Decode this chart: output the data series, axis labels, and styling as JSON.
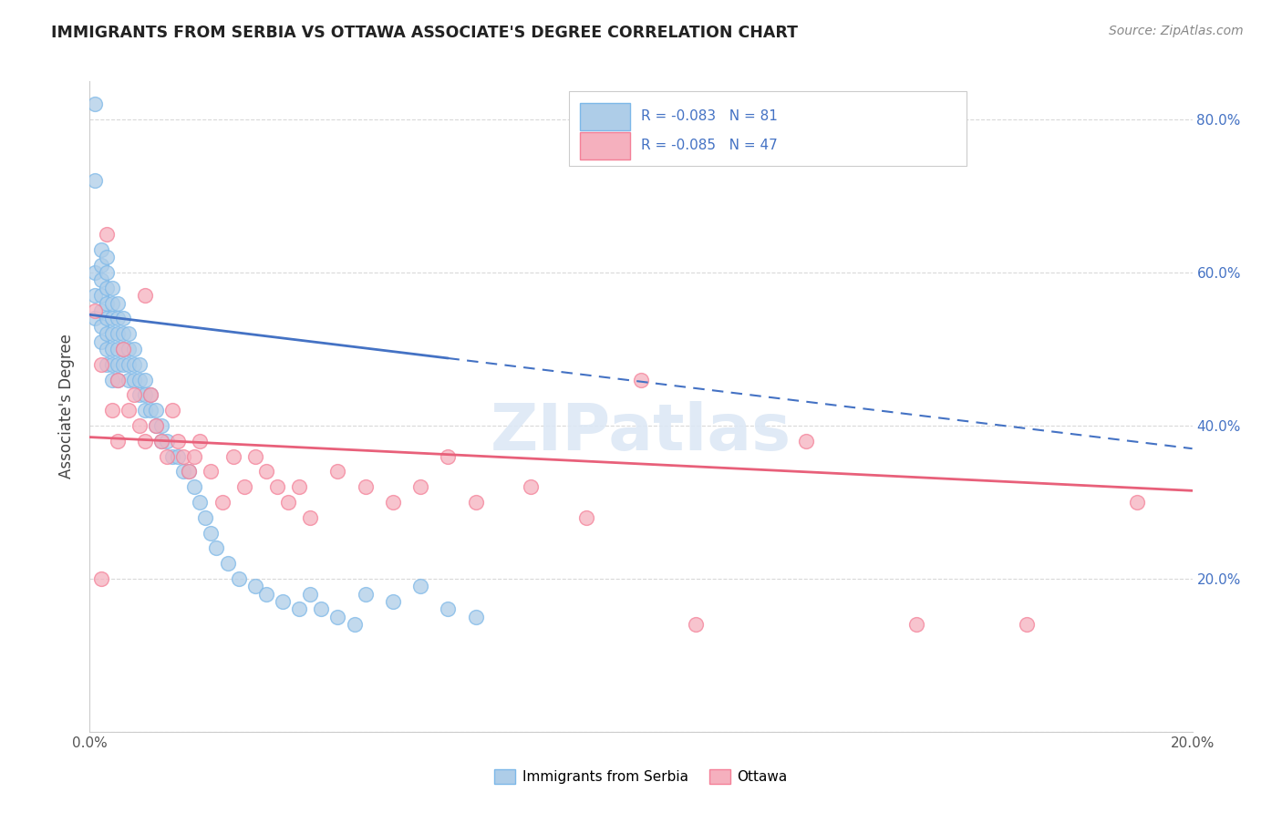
{
  "title": "IMMIGRANTS FROM SERBIA VS OTTAWA ASSOCIATE'S DEGREE CORRELATION CHART",
  "source": "Source: ZipAtlas.com",
  "ylabel": "Associate's Degree",
  "blue_color": "#7db8e8",
  "pink_color": "#f48098",
  "blue_fill": "#aecde8",
  "pink_fill": "#f5b0be",
  "trend_blue": "#4472c4",
  "trend_pink": "#e8607a",
  "background_color": "#ffffff",
  "grid_color": "#d0d0d0",
  "R_blue": "-0.083",
  "N_blue": "81",
  "R_pink": "-0.085",
  "N_pink": "47",
  "serbia_x": [
    0.001,
    0.001,
    0.001,
    0.001,
    0.001,
    0.002,
    0.002,
    0.002,
    0.002,
    0.002,
    0.002,
    0.002,
    0.003,
    0.003,
    0.003,
    0.003,
    0.003,
    0.003,
    0.003,
    0.003,
    0.004,
    0.004,
    0.004,
    0.004,
    0.004,
    0.004,
    0.004,
    0.005,
    0.005,
    0.005,
    0.005,
    0.005,
    0.005,
    0.006,
    0.006,
    0.006,
    0.006,
    0.007,
    0.007,
    0.007,
    0.007,
    0.008,
    0.008,
    0.008,
    0.009,
    0.009,
    0.009,
    0.01,
    0.01,
    0.01,
    0.011,
    0.011,
    0.012,
    0.012,
    0.013,
    0.013,
    0.014,
    0.015,
    0.016,
    0.017,
    0.018,
    0.019,
    0.02,
    0.021,
    0.022,
    0.023,
    0.025,
    0.027,
    0.03,
    0.032,
    0.035,
    0.038,
    0.04,
    0.042,
    0.045,
    0.048,
    0.05,
    0.055,
    0.06,
    0.065,
    0.07
  ],
  "serbia_y": [
    0.82,
    0.72,
    0.6,
    0.57,
    0.54,
    0.63,
    0.61,
    0.59,
    0.57,
    0.55,
    0.53,
    0.51,
    0.62,
    0.6,
    0.58,
    0.56,
    0.54,
    0.52,
    0.5,
    0.48,
    0.58,
    0.56,
    0.54,
    0.52,
    0.5,
    0.48,
    0.46,
    0.56,
    0.54,
    0.52,
    0.5,
    0.48,
    0.46,
    0.54,
    0.52,
    0.5,
    0.48,
    0.52,
    0.5,
    0.48,
    0.46,
    0.5,
    0.48,
    0.46,
    0.48,
    0.46,
    0.44,
    0.46,
    0.44,
    0.42,
    0.44,
    0.42,
    0.42,
    0.4,
    0.4,
    0.38,
    0.38,
    0.36,
    0.36,
    0.34,
    0.34,
    0.32,
    0.3,
    0.28,
    0.26,
    0.24,
    0.22,
    0.2,
    0.19,
    0.18,
    0.17,
    0.16,
    0.18,
    0.16,
    0.15,
    0.14,
    0.18,
    0.17,
    0.19,
    0.16,
    0.15
  ],
  "ottawa_x": [
    0.001,
    0.002,
    0.003,
    0.004,
    0.005,
    0.005,
    0.006,
    0.007,
    0.008,
    0.009,
    0.01,
    0.011,
    0.012,
    0.013,
    0.014,
    0.015,
    0.016,
    0.017,
    0.018,
    0.019,
    0.02,
    0.022,
    0.024,
    0.026,
    0.028,
    0.03,
    0.032,
    0.034,
    0.036,
    0.038,
    0.04,
    0.045,
    0.05,
    0.055,
    0.06,
    0.065,
    0.07,
    0.08,
    0.09,
    0.1,
    0.11,
    0.13,
    0.15,
    0.17,
    0.19,
    0.002,
    0.01
  ],
  "ottawa_y": [
    0.55,
    0.48,
    0.65,
    0.42,
    0.46,
    0.38,
    0.5,
    0.42,
    0.44,
    0.4,
    0.38,
    0.44,
    0.4,
    0.38,
    0.36,
    0.42,
    0.38,
    0.36,
    0.34,
    0.36,
    0.38,
    0.34,
    0.3,
    0.36,
    0.32,
    0.36,
    0.34,
    0.32,
    0.3,
    0.32,
    0.28,
    0.34,
    0.32,
    0.3,
    0.32,
    0.36,
    0.3,
    0.32,
    0.28,
    0.46,
    0.14,
    0.38,
    0.14,
    0.14,
    0.3,
    0.2,
    0.57
  ],
  "xlim": [
    0.0,
    0.2
  ],
  "ylim": [
    0.0,
    0.85
  ],
  "blue_line_x0": 0.0,
  "blue_line_y0": 0.545,
  "blue_line_x1": 0.2,
  "blue_line_y1": 0.37,
  "pink_line_x0": 0.0,
  "pink_line_y0": 0.385,
  "pink_line_x1": 0.2,
  "pink_line_y1": 0.315,
  "dashed_split": 0.065
}
